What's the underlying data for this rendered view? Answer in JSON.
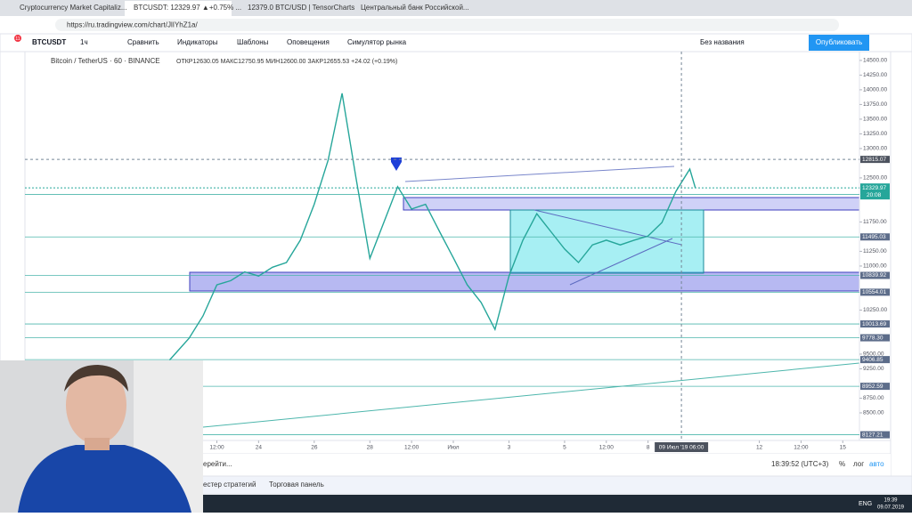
{
  "browser": {
    "tabs": [
      "Cryptocurrency Market Capitaliz...",
      "BTCUSDT: 12329.97 ▲+0.75% ...",
      "12379.0 BTC/USD | TensorCharts",
      "Центральный банк Российской..."
    ],
    "url": "https://ru.tradingview.com/chart/JlIYhZ1a/"
  },
  "toolbar": {
    "badge": "11",
    "symbol": "BTCUSDT",
    "interval": "1ч",
    "compare": "Сравнить",
    "indicators": "Индикаторы",
    "templates": "Шаблоны",
    "alerts": "Оповещения",
    "replay": "Симулятор рынка",
    "layout": "Без названия",
    "publish": "Опубликовать"
  },
  "legend": {
    "symbol": "Bitcoin / TetherUS · 60 · BINANCE",
    "ohlc": "ОТКР12630.05  МАКС12750.95  МИН12600.00  ЗАКР12655.53  +24.02 (+0.19%)"
  },
  "chart_data": {
    "type": "line",
    "color": "#26a69a",
    "x": [
      20.8,
      21.5,
      22,
      22.5,
      23,
      23.5,
      24,
      24.5,
      25,
      25.5,
      26,
      26.5,
      27,
      27.5,
      28,
      28.5,
      29,
      29.5,
      30,
      30.5,
      31,
      31.5,
      32,
      32.5,
      33,
      33.5,
      34,
      34.5,
      35,
      35.5,
      36,
      36.5,
      37,
      37.5,
      38,
      38.5,
      39,
      39.5,
      39.7
    ],
    "values": [
      9400,
      9770,
      10150,
      10680,
      10750,
      10900,
      10830,
      10980,
      11060,
      11440,
      12050,
      12800,
      13940,
      12500,
      11130,
      11740,
      12350,
      11970,
      12050,
      11590,
      11140,
      10680,
      10380,
      9920,
      10830,
      11440,
      11890,
      11590,
      11290,
      11060,
      11360,
      11440,
      11360,
      11440,
      11510,
      11740,
      12270,
      12650,
      12330
    ],
    "xlim": [
      15.6,
      45.6
    ],
    "ylim": [
      8030,
      14650
    ],
    "xticks": [
      {
        "value": 22.5,
        "label": "12:00"
      },
      {
        "value": 24,
        "label": "24"
      },
      {
        "value": 26,
        "label": "26"
      },
      {
        "value": 28,
        "label": "28"
      },
      {
        "value": 29.5,
        "label": "12:00"
      },
      {
        "value": 31,
        "label": "Июл"
      },
      {
        "value": 33,
        "label": "3"
      },
      {
        "value": 35,
        "label": "5"
      },
      {
        "value": 36.5,
        "label": "12:00"
      },
      {
        "value": 38,
        "label": "8"
      },
      {
        "value": 42,
        "label": "12"
      },
      {
        "value": 43.5,
        "label": "12:00"
      },
      {
        "value": 45,
        "label": "15"
      }
    ],
    "yticks": [
      {
        "value": 14500,
        "label": "14500.00"
      },
      {
        "value": 14250,
        "label": "14250.00"
      },
      {
        "value": 14000,
        "label": "14000.00"
      },
      {
        "value": 13750,
        "label": "13750.00"
      },
      {
        "value": 13500,
        "label": "13500.00"
      },
      {
        "value": 13250,
        "label": "13250.00"
      },
      {
        "value": 13000,
        "label": "13000.00"
      },
      {
        "value": 12500,
        "label": "12500.00"
      },
      {
        "value": 11750,
        "label": "11750.00"
      },
      {
        "value": 11250,
        "label": "11250.00"
      },
      {
        "value": 11000,
        "label": "11000.00"
      },
      {
        "value": 10250,
        "label": "10250.00"
      },
      {
        "value": 9500,
        "label": "9500.00"
      },
      {
        "value": 9250,
        "label": "9250.00"
      },
      {
        "value": 8750,
        "label": "8750.00"
      },
      {
        "value": 8500,
        "label": "8500.00"
      }
    ],
    "levels": [
      {
        "value": 12219.7,
        "label": "12219.70"
      },
      {
        "value": 11495.03,
        "label": "11495.03"
      },
      {
        "value": 10839.92,
        "label": "10839.92"
      },
      {
        "value": 10554.01,
        "label": "10554.01"
      },
      {
        "value": 10013.69,
        "label": "10013.69"
      },
      {
        "value": 9778.3,
        "label": "9778.30"
      },
      {
        "value": 9406.85,
        "label": "9406.85"
      },
      {
        "value": 8952.59,
        "label": "8952.59"
      },
      {
        "value": 8127.21,
        "label": "8127.21"
      }
    ],
    "last_price": {
      "value": 12329.97,
      "label": "12329.97",
      "timer": "20:08"
    },
    "crosshair": {
      "value": 12815.07,
      "label": "12815.07"
    },
    "crosshair_time": {
      "value": 39.2,
      "label": "09 Июл '19  06:00"
    }
  },
  "bottom": {
    "goto": "ерейти...",
    "clock": "18:39:52 (UTC+3)",
    "percent": "%",
    "log": "лог",
    "auto": "авто",
    "tab1": "естер стратегий",
    "tab2": "Торговая панель"
  },
  "taskbar": {
    "lang": "ENG",
    "time": "19:39",
    "date": "09.07.2019"
  }
}
